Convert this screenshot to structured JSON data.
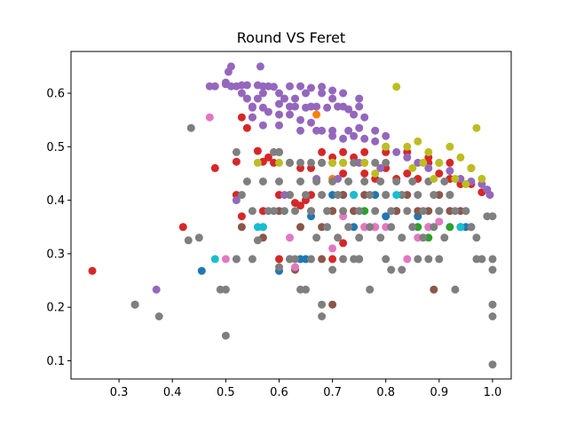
{
  "chart_data": {
    "type": "scatter",
    "title": "Round VS Feret",
    "xlabel": "",
    "ylabel": "",
    "xlim": [
      0.21,
      1.035
    ],
    "ylim": [
      0.066,
      0.678
    ],
    "xticks": [
      0.3,
      0.4,
      0.5,
      0.6,
      0.7,
      0.8,
      0.9,
      1.0
    ],
    "xtick_labels": [
      "0.3",
      "0.4",
      "0.5",
      "0.6",
      "0.7",
      "0.8",
      "0.9",
      "1.0"
    ],
    "yticks": [
      0.1,
      0.2,
      0.3,
      0.4,
      0.5,
      0.6
    ],
    "ytick_labels": [
      "0.1",
      "0.2",
      "0.3",
      "0.4",
      "0.5",
      "0.6"
    ],
    "grid": false,
    "legend": "none",
    "colors": {
      "blue": "#1f77b4",
      "orange": "#ff7f0e",
      "green": "#2ca02c",
      "red": "#d62728",
      "purple": "#9467bd",
      "brown": "#8c564b",
      "pink": "#e377c2",
      "gray": "#7f7f7f",
      "olive": "#bcbd22",
      "cyan": "#17becf"
    },
    "points": {
      "purple": [
        [
          0.5,
          0.617
        ],
        [
          0.51,
          0.613
        ],
        [
          0.52,
          0.613
        ],
        [
          0.53,
          0.6
        ],
        [
          0.54,
          0.59
        ],
        [
          0.55,
          0.575
        ],
        [
          0.56,
          0.59
        ],
        [
          0.57,
          0.6
        ],
        [
          0.58,
          0.613
        ],
        [
          0.6,
          0.6
        ],
        [
          0.61,
          0.59
        ],
        [
          0.62,
          0.575
        ],
        [
          0.63,
          0.59
        ],
        [
          0.65,
          0.6
        ],
        [
          0.66,
          0.575
        ],
        [
          0.68,
          0.6
        ],
        [
          0.7,
          0.59
        ],
        [
          0.72,
          0.575
        ],
        [
          0.74,
          0.56
        ],
        [
          0.76,
          0.555
        ],
        [
          0.55,
          0.555
        ],
        [
          0.58,
          0.565
        ],
        [
          0.6,
          0.56
        ],
        [
          0.62,
          0.56
        ],
        [
          0.64,
          0.55
        ],
        [
          0.66,
          0.545
        ],
        [
          0.68,
          0.53
        ],
        [
          0.7,
          0.52
        ],
        [
          0.72,
          0.515
        ],
        [
          0.74,
          0.52
        ],
        [
          0.76,
          0.515
        ],
        [
          0.78,
          0.51
        ],
        [
          0.8,
          0.5
        ],
        [
          0.82,
          0.49
        ],
        [
          0.84,
          0.48
        ],
        [
          0.86,
          0.47
        ],
        [
          0.88,
          0.46
        ],
        [
          0.9,
          0.47
        ],
        [
          0.92,
          0.455
        ],
        [
          0.94,
          0.44
        ],
        [
          0.96,
          0.435
        ],
        [
          0.98,
          0.43
        ],
        [
          0.99,
          0.42
        ],
        [
          0.995,
          0.41
        ],
        [
          0.47,
          0.613
        ],
        [
          0.48,
          0.613
        ],
        [
          0.5,
          0.62
        ],
        [
          0.505,
          0.64
        ],
        [
          0.51,
          0.65
        ],
        [
          0.565,
          0.65
        ],
        [
          0.53,
          0.615
        ],
        [
          0.54,
          0.615
        ],
        [
          0.56,
          0.615
        ],
        [
          0.57,
          0.613
        ],
        [
          0.59,
          0.612
        ],
        [
          0.62,
          0.613
        ],
        [
          0.64,
          0.613
        ],
        [
          0.66,
          0.61
        ],
        [
          0.68,
          0.612
        ],
        [
          0.7,
          0.605
        ],
        [
          0.72,
          0.6
        ],
        [
          0.75,
          0.59
        ],
        [
          0.55,
          0.573
        ],
        [
          0.57,
          0.573
        ],
        [
          0.6,
          0.58
        ],
        [
          0.63,
          0.575
        ],
        [
          0.65,
          0.573
        ],
        [
          0.67,
          0.575
        ],
        [
          0.69,
          0.573
        ],
        [
          0.71,
          0.575
        ],
        [
          0.73,
          0.57
        ],
        [
          0.75,
          0.575
        ],
        [
          0.57,
          0.54
        ],
        [
          0.6,
          0.54
        ],
        [
          0.64,
          0.53
        ],
        [
          0.67,
          0.53
        ],
        [
          0.7,
          0.53
        ],
        [
          0.73,
          0.53
        ],
        [
          0.75,
          0.535
        ],
        [
          0.78,
          0.53
        ],
        [
          0.8,
          0.52
        ],
        [
          0.37,
          0.233
        ],
        [
          0.52,
          0.4
        ],
        [
          0.61,
          0.41
        ],
        [
          0.67,
          0.44
        ],
        [
          0.71,
          0.44
        ],
        [
          0.75,
          0.47
        ],
        [
          0.79,
          0.46
        ]
      ],
      "red": [
        [
          0.33,
          0.205
        ],
        [
          0.25,
          0.268
        ],
        [
          0.42,
          0.35
        ],
        [
          0.48,
          0.46
        ],
        [
          0.52,
          0.472
        ],
        [
          0.53,
          0.555
        ],
        [
          0.54,
          0.535
        ],
        [
          0.55,
          0.555
        ],
        [
          0.56,
          0.492
        ],
        [
          0.57,
          0.472
        ],
        [
          0.58,
          0.48
        ],
        [
          0.59,
          0.47
        ],
        [
          0.6,
          0.49
        ],
        [
          0.62,
          0.47
        ],
        [
          0.64,
          0.46
        ],
        [
          0.66,
          0.46
        ],
        [
          0.68,
          0.47
        ],
        [
          0.7,
          0.48
        ],
        [
          0.72,
          0.45
        ],
        [
          0.74,
          0.48
        ],
        [
          0.76,
          0.45
        ],
        [
          0.78,
          0.44
        ],
        [
          0.8,
          0.46
        ],
        [
          0.82,
          0.44
        ],
        [
          0.84,
          0.45
        ],
        [
          0.86,
          0.44
        ],
        [
          0.88,
          0.47
        ],
        [
          0.9,
          0.45
        ],
        [
          0.92,
          0.44
        ],
        [
          0.94,
          0.43
        ],
        [
          0.96,
          0.43
        ],
        [
          0.98,
          0.415
        ],
        [
          0.52,
          0.41
        ],
        [
          0.53,
          0.37
        ],
        [
          0.57,
          0.38
        ],
        [
          0.6,
          0.41
        ],
        [
          0.63,
          0.395
        ],
        [
          0.65,
          0.4
        ],
        [
          0.66,
          0.41
        ],
        [
          0.7,
          0.29
        ],
        [
          0.72,
          0.32
        ],
        [
          0.76,
          0.35
        ],
        [
          0.6,
          0.29
        ],
        [
          0.64,
          0.39
        ],
        [
          0.68,
          0.49
        ],
        [
          0.72,
          0.49
        ],
        [
          0.76,
          0.49
        ],
        [
          0.8,
          0.49
        ],
        [
          0.84,
          0.49
        ],
        [
          0.88,
          0.48
        ],
        [
          0.92,
          0.47
        ],
        [
          0.96,
          0.46
        ]
      ],
      "gray": [
        [
          0.33,
          0.205
        ],
        [
          0.375,
          0.183
        ],
        [
          0.43,
          0.325
        ],
        [
          0.435,
          0.535
        ],
        [
          0.45,
          0.33
        ],
        [
          0.49,
          0.233
        ],
        [
          0.5,
          0.233
        ],
        [
          0.5,
          0.147
        ],
        [
          0.52,
          0.29
        ],
        [
          0.52,
          0.49
        ],
        [
          0.53,
          0.41
        ],
        [
          0.54,
          0.435
        ],
        [
          0.55,
          0.38
        ],
        [
          0.56,
          0.325
        ],
        [
          0.57,
          0.435
        ],
        [
          0.58,
          0.38
        ],
        [
          0.59,
          0.49
        ],
        [
          0.6,
          0.435
        ],
        [
          0.61,
          0.38
        ],
        [
          0.62,
          0.41
        ],
        [
          0.63,
          0.38
        ],
        [
          0.64,
          0.435
        ],
        [
          0.65,
          0.41
        ],
        [
          0.66,
          0.38
        ],
        [
          0.67,
          0.435
        ],
        [
          0.68,
          0.41
        ],
        [
          0.69,
          0.38
        ],
        [
          0.7,
          0.435
        ],
        [
          0.71,
          0.41
        ],
        [
          0.72,
          0.38
        ],
        [
          0.73,
          0.435
        ],
        [
          0.74,
          0.41
        ],
        [
          0.75,
          0.38
        ],
        [
          0.76,
          0.435
        ],
        [
          0.77,
          0.41
        ],
        [
          0.78,
          0.38
        ],
        [
          0.79,
          0.435
        ],
        [
          0.8,
          0.41
        ],
        [
          0.81,
          0.38
        ],
        [
          0.82,
          0.435
        ],
        [
          0.83,
          0.41
        ],
        [
          0.84,
          0.38
        ],
        [
          0.85,
          0.435
        ],
        [
          0.86,
          0.41
        ],
        [
          0.87,
          0.38
        ],
        [
          0.88,
          0.435
        ],
        [
          0.89,
          0.41
        ],
        [
          0.9,
          0.38
        ],
        [
          0.91,
          0.435
        ],
        [
          0.92,
          0.41
        ],
        [
          0.93,
          0.38
        ],
        [
          0.94,
          0.35
        ],
        [
          0.95,
          0.38
        ],
        [
          0.96,
          0.35
        ],
        [
          0.97,
          0.33
        ],
        [
          0.98,
          0.29
        ],
        [
          0.99,
          0.37
        ],
        [
          1.0,
          0.37
        ],
        [
          1.0,
          0.29
        ],
        [
          1.0,
          0.27
        ],
        [
          1.0,
          0.205
        ],
        [
          1.0,
          0.183
        ],
        [
          1.0,
          0.093
        ],
        [
          0.6,
          0.49
        ],
        [
          0.62,
          0.47
        ],
        [
          0.64,
          0.47
        ],
        [
          0.66,
          0.47
        ],
        [
          0.68,
          0.47
        ],
        [
          0.7,
          0.47
        ],
        [
          0.72,
          0.47
        ],
        [
          0.74,
          0.47
        ],
        [
          0.76,
          0.47
        ],
        [
          0.78,
          0.47
        ],
        [
          0.8,
          0.47
        ],
        [
          0.64,
          0.233
        ],
        [
          0.65,
          0.233
        ],
        [
          0.68,
          0.205
        ],
        [
          0.68,
          0.183
        ],
        [
          0.7,
          0.27
        ],
        [
          0.72,
          0.29
        ],
        [
          0.74,
          0.29
        ],
        [
          0.75,
          0.29
        ],
        [
          0.77,
          0.233
        ],
        [
          0.8,
          0.29
        ],
        [
          0.81,
          0.27
        ],
        [
          0.83,
          0.27
        ],
        [
          0.86,
          0.29
        ],
        [
          0.88,
          0.29
        ],
        [
          0.9,
          0.29
        ],
        [
          0.93,
          0.233
        ],
        [
          0.97,
          0.29
        ],
        [
          0.6,
          0.275
        ],
        [
          0.62,
          0.29
        ],
        [
          0.63,
          0.29
        ],
        [
          0.66,
          0.29
        ],
        [
          0.67,
          0.33
        ],
        [
          0.69,
          0.35
        ],
        [
          0.71,
          0.33
        ],
        [
          0.73,
          0.35
        ],
        [
          0.75,
          0.33
        ],
        [
          0.77,
          0.35
        ],
        [
          0.79,
          0.33
        ],
        [
          0.81,
          0.35
        ],
        [
          0.83,
          0.33
        ],
        [
          0.85,
          0.35
        ],
        [
          0.87,
          0.33
        ],
        [
          0.89,
          0.35
        ],
        [
          0.91,
          0.33
        ],
        [
          0.55,
          0.29
        ],
        [
          0.57,
          0.35
        ],
        [
          0.59,
          0.38
        ]
      ],
      "olive": [
        [
          0.82,
          0.612
        ],
        [
          0.97,
          0.535
        ],
        [
          0.86,
          0.51
        ],
        [
          0.88,
          0.49
        ],
        [
          0.9,
          0.47
        ],
        [
          0.92,
          0.5
        ],
        [
          0.94,
          0.48
        ],
        [
          0.96,
          0.46
        ],
        [
          0.8,
          0.5
        ],
        [
          0.84,
          0.5
        ],
        [
          0.76,
          0.47
        ],
        [
          0.78,
          0.45
        ],
        [
          0.7,
          0.47
        ],
        [
          0.72,
          0.47
        ],
        [
          0.56,
          0.47
        ],
        [
          0.6,
          0.47
        ],
        [
          0.98,
          0.44
        ],
        [
          0.93,
          0.44
        ],
        [
          0.95,
          0.43
        ],
        [
          0.85,
          0.46
        ],
        [
          0.87,
          0.47
        ],
        [
          0.89,
          0.44
        ]
      ],
      "brown": [
        [
          0.53,
          0.35
        ],
        [
          0.57,
          0.33
        ],
        [
          0.6,
          0.38
        ],
        [
          0.62,
          0.29
        ],
        [
          0.64,
          0.35
        ],
        [
          0.66,
          0.38
        ],
        [
          0.68,
          0.35
        ],
        [
          0.7,
          0.38
        ],
        [
          0.72,
          0.41
        ],
        [
          0.74,
          0.38
        ],
        [
          0.76,
          0.41
        ],
        [
          0.78,
          0.35
        ],
        [
          0.8,
          0.41
        ],
        [
          0.82,
          0.38
        ],
        [
          0.84,
          0.41
        ],
        [
          0.86,
          0.38
        ],
        [
          0.88,
          0.38
        ],
        [
          0.9,
          0.41
        ],
        [
          0.92,
          0.38
        ],
        [
          0.94,
          0.38
        ],
        [
          0.96,
          0.35
        ],
        [
          0.89,
          0.233
        ],
        [
          0.68,
          0.29
        ],
        [
          0.7,
          0.205
        ],
        [
          0.63,
          0.27
        ]
      ],
      "blue": [
        [
          0.455,
          0.268
        ],
        [
          0.6,
          0.268
        ],
        [
          0.62,
          0.41
        ],
        [
          0.64,
          0.29
        ],
        [
          0.65,
          0.29
        ],
        [
          0.66,
          0.37
        ],
        [
          0.7,
          0.41
        ],
        [
          0.72,
          0.41
        ],
        [
          0.74,
          0.35
        ],
        [
          0.75,
          0.29
        ],
        [
          0.78,
          0.41
        ],
        [
          0.8,
          0.37
        ],
        [
          0.86,
          0.37
        ],
        [
          0.88,
          0.35
        ],
        [
          0.9,
          0.38
        ],
        [
          0.95,
          0.35
        ]
      ],
      "pink": [
        [
          0.47,
          0.555
        ],
        [
          0.5,
          0.29
        ],
        [
          0.52,
          0.29
        ],
        [
          0.62,
          0.33
        ],
        [
          0.63,
          0.275
        ],
        [
          0.66,
          0.38
        ],
        [
          0.7,
          0.31
        ],
        [
          0.72,
          0.37
        ],
        [
          0.76,
          0.35
        ],
        [
          0.78,
          0.35
        ],
        [
          0.8,
          0.35
        ],
        [
          0.84,
          0.29
        ],
        [
          0.86,
          0.33
        ],
        [
          0.88,
          0.35
        ],
        [
          0.9,
          0.36
        ],
        [
          0.92,
          0.41
        ],
        [
          0.94,
          0.35
        ],
        [
          0.74,
          0.41
        ]
      ],
      "green": [
        [
          0.74,
          0.38
        ],
        [
          0.76,
          0.38
        ],
        [
          0.82,
          0.38
        ],
        [
          0.86,
          0.35
        ],
        [
          0.88,
          0.33
        ],
        [
          0.92,
          0.35
        ],
        [
          0.7,
          0.38
        ]
      ],
      "cyan": [
        [
          0.48,
          0.29
        ],
        [
          0.56,
          0.35
        ],
        [
          0.57,
          0.35
        ],
        [
          0.94,
          0.35
        ],
        [
          0.74,
          0.41
        ],
        [
          0.82,
          0.41
        ]
      ],
      "orange": [
        [
          0.67,
          0.56
        ],
        [
          0.6,
          0.41
        ],
        [
          0.7,
          0.44
        ]
      ]
    },
    "series_order": [
      "blue",
      "orange",
      "green",
      "red",
      "purple",
      "brown",
      "pink",
      "gray",
      "olive",
      "cyan"
    ]
  }
}
